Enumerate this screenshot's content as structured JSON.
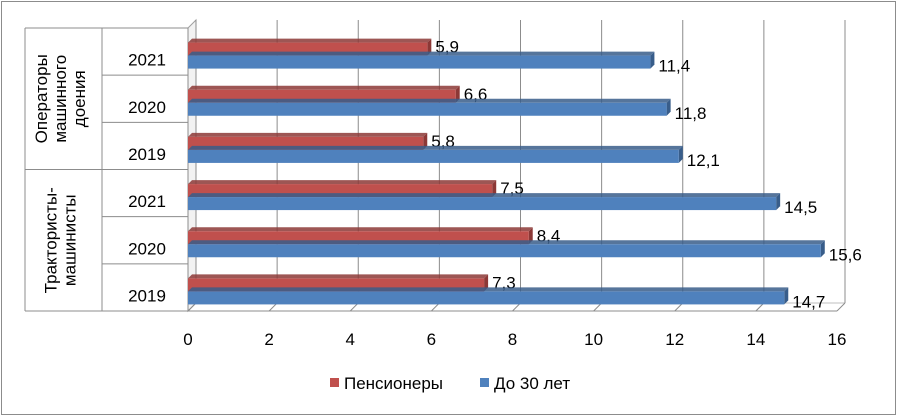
{
  "chart_data": {
    "type": "bar",
    "orientation": "horizontal",
    "groups": [
      {
        "name": "Операторы машинного доения",
        "lines": [
          "Операторы",
          "машинного",
          "доения"
        ],
        "categories": [
          "2021",
          "2020",
          "2019"
        ]
      },
      {
        "name": "Трактористы-машинисты",
        "lines": [
          "Трактористы-",
          "машинисты"
        ],
        "categories": [
          "2021",
          "2020",
          "2019"
        ]
      }
    ],
    "series": [
      {
        "name": "Пенсионеры",
        "color": "#c0504d",
        "values": [
          5.9,
          6.6,
          5.8,
          7.5,
          8.4,
          7.3
        ],
        "labels": [
          "5,9",
          "6,6",
          "5,8",
          "7,5",
          "8,4",
          "7,3"
        ]
      },
      {
        "name": "До 30 лет",
        "color": "#4f81bd",
        "values": [
          11.4,
          11.8,
          12.1,
          14.5,
          15.6,
          14.7
        ],
        "labels": [
          "11,4",
          "11,8",
          "12,1",
          "14,5",
          "15,6",
          "14,7"
        ]
      }
    ],
    "xlim": [
      0,
      16
    ],
    "xticks": [
      "0",
      "2",
      "4",
      "6",
      "8",
      "10",
      "12",
      "14",
      "16"
    ],
    "grid": true,
    "legend_position": "bottom"
  }
}
